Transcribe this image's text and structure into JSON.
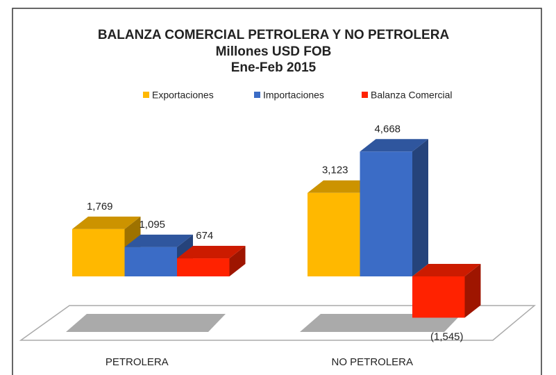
{
  "chart_data": {
    "type": "bar3d",
    "title": "BALANZA COMERCIAL PETROLERA Y NO PETROLERA",
    "subtitle": [
      "Millones USD FOB",
      "Ene-Feb 2015"
    ],
    "categories": [
      "PETROLERA",
      "NO PETROLERA"
    ],
    "series": [
      {
        "name": "Exportaciones",
        "color": "#ffb800",
        "values": [
          1769,
          3123
        ],
        "value_labels": [
          "1,769",
          "3,123"
        ]
      },
      {
        "name": "Importaciones",
        "color": "#3b6cc6",
        "values": [
          1095,
          4668
        ],
        "value_labels": [
          "1,095",
          "4,668"
        ]
      },
      {
        "name": "Balanza Comercial",
        "color": "#ff2200",
        "values": [
          674,
          -1545
        ],
        "value_labels": [
          "674",
          "(1,545)"
        ]
      }
    ],
    "ylim": [
      -2000,
      5000
    ],
    "legend": "top"
  }
}
